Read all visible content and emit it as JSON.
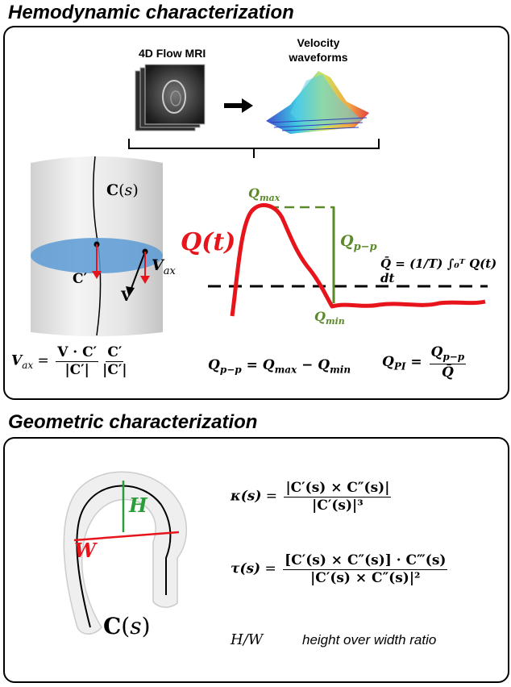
{
  "hemo": {
    "title": "Hemodynamic characterization",
    "mri_label": "4D Flow MRI",
    "velocity_label_line1": "Velocity",
    "velocity_label_line2": "waveforms",
    "cs_label": "C(s)",
    "c_prime": "C′",
    "v_vec": "V",
    "v_ax": "V",
    "v_ax_sub": "ax",
    "q_t": "Q(t)",
    "q_max": "Q",
    "q_max_sub": "max",
    "q_min": "Q",
    "q_min_sub": "min",
    "q_pp": "Q",
    "q_pp_sub": "p−p",
    "qbar_eq": "Q̄ = (1/T) ∫₀ᵀ Q(t) dt",
    "eq_vax_lhs": "V",
    "eq_vax_sub": "ax",
    "eq_vax_num": "V · C′",
    "eq_vax_den": "|C′|",
    "eq_vax_num2": "C′",
    "eq_vax_den2": "|C′|",
    "eq_qpp": "Q",
    "eq_qpp_sub": "p−p",
    "eq_qpp_rhs_a": "Q",
    "eq_qpp_rhs_a_sub": "max",
    "eq_qpp_rhs_b": "Q",
    "eq_qpp_rhs_b_sub": "min",
    "eq_qpi": "Q",
    "eq_qpi_sub": "PI",
    "eq_qpi_num": "Q",
    "eq_qpi_num_sub": "p−p",
    "eq_qpi_den": "Q̄"
  },
  "geo": {
    "title": "Geometric characterization",
    "h_label": "H",
    "w_label": "W",
    "cs_label": "C(s)",
    "kappa_lhs": "κ(s)",
    "kappa_num": "|C′(s) × C″(s)|",
    "kappa_den": "|C′(s)|³",
    "tau_lhs": "τ(s)",
    "tau_num": "[C′(s) × C″(s)] · C‴(s)",
    "tau_den": "|C′(s) × C″(s)|²",
    "hw_label": "H/W",
    "hw_desc": "height over width ratio"
  },
  "colors": {
    "red": "#e8141c",
    "green": "#5a8a2a",
    "blue": "#5b9bd5"
  }
}
